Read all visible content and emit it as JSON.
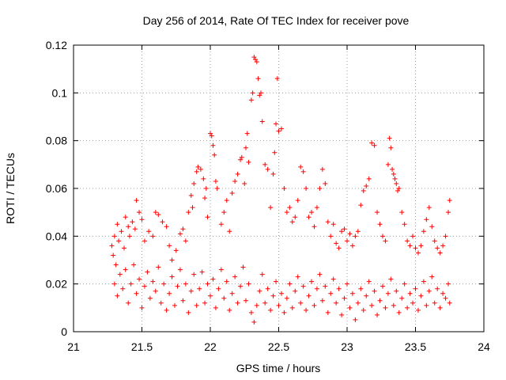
{
  "chart_data": {
    "type": "scatter",
    "title": "Day 256 of 2014, Rate Of TEC Index for receiver pove",
    "xlabel": "GPS time / hours",
    "ylabel": "ROTI / TECUs",
    "xlim": [
      21,
      24
    ],
    "ylim": [
      0,
      0.12
    ],
    "xticks": [
      21,
      21.5,
      22,
      22.5,
      23,
      23.5,
      24
    ],
    "xtick_labels": [
      "21",
      "21.5",
      "22",
      "22.5",
      "23",
      "23.5",
      "24"
    ],
    "yticks": [
      0,
      0.02,
      0.04,
      0.06,
      0.08,
      0.1,
      0.12
    ],
    "ytick_labels": [
      "0",
      "0.02",
      "0.04",
      "0.06",
      "0.08",
      "0.1",
      "0.12"
    ],
    "grid": true,
    "marker": "+",
    "marker_color": "#ff0000",
    "series": [
      {
        "name": "ROTI",
        "points": [
          [
            21.28,
            0.036
          ],
          [
            21.29,
            0.032
          ],
          [
            21.3,
            0.04
          ],
          [
            21.31,
            0.028
          ],
          [
            21.32,
            0.045
          ],
          [
            21.33,
            0.038
          ],
          [
            21.35,
            0.042
          ],
          [
            21.37,
            0.035
          ],
          [
            21.38,
            0.048
          ],
          [
            21.4,
            0.044
          ],
          [
            21.41,
            0.04
          ],
          [
            21.43,
            0.046
          ],
          [
            21.45,
            0.043
          ],
          [
            21.46,
            0.055
          ],
          [
            21.48,
            0.05
          ],
          [
            21.5,
            0.047
          ],
          [
            21.52,
            0.038
          ],
          [
            21.55,
            0.042
          ],
          [
            21.58,
            0.04
          ],
          [
            21.6,
            0.05
          ],
          [
            21.62,
            0.049
          ],
          [
            21.65,
            0.046
          ],
          [
            21.68,
            0.044
          ],
          [
            21.7,
            0.036
          ],
          [
            21.72,
            0.03
          ],
          [
            21.75,
            0.034
          ],
          [
            21.78,
            0.041
          ],
          [
            21.8,
            0.043
          ],
          [
            21.82,
            0.038
          ],
          [
            21.84,
            0.05
          ],
          [
            21.86,
            0.057
          ],
          [
            21.87,
            0.052
          ],
          [
            21.88,
            0.062
          ],
          [
            21.9,
            0.067
          ],
          [
            21.91,
            0.069
          ],
          [
            21.93,
            0.068
          ],
          [
            21.95,
            0.064
          ],
          [
            21.96,
            0.056
          ],
          [
            21.97,
            0.06
          ],
          [
            21.98,
            0.048
          ],
          [
            22.0,
            0.083
          ],
          [
            22.01,
            0.082
          ],
          [
            22.02,
            0.078
          ],
          [
            22.03,
            0.074
          ],
          [
            22.04,
            0.063
          ],
          [
            22.05,
            0.06
          ],
          [
            22.08,
            0.045
          ],
          [
            22.1,
            0.05
          ],
          [
            22.12,
            0.055
          ],
          [
            22.14,
            0.042
          ],
          [
            22.16,
            0.058
          ],
          [
            22.18,
            0.063
          ],
          [
            22.2,
            0.066
          ],
          [
            22.22,
            0.072
          ],
          [
            22.23,
            0.073
          ],
          [
            22.25,
            0.062
          ],
          [
            22.26,
            0.077
          ],
          [
            22.27,
            0.083
          ],
          [
            22.28,
            0.071
          ],
          [
            22.3,
            0.097
          ],
          [
            22.31,
            0.1
          ],
          [
            22.32,
            0.115
          ],
          [
            22.33,
            0.114
          ],
          [
            22.34,
            0.113
          ],
          [
            22.35,
            0.106
          ],
          [
            22.36,
            0.099
          ],
          [
            22.37,
            0.1
          ],
          [
            22.38,
            0.088
          ],
          [
            22.4,
            0.07
          ],
          [
            22.42,
            0.068
          ],
          [
            22.44,
            0.052
          ],
          [
            22.46,
            0.066
          ],
          [
            22.47,
            0.075
          ],
          [
            22.48,
            0.087
          ],
          [
            22.49,
            0.106
          ],
          [
            22.5,
            0.084
          ],
          [
            22.52,
            0.085
          ],
          [
            22.54,
            0.06
          ],
          [
            22.56,
            0.05
          ],
          [
            22.58,
            0.052
          ],
          [
            22.6,
            0.046
          ],
          [
            22.62,
            0.048
          ],
          [
            22.64,
            0.055
          ],
          [
            22.66,
            0.069
          ],
          [
            22.68,
            0.067
          ],
          [
            22.7,
            0.06
          ],
          [
            22.72,
            0.048
          ],
          [
            22.74,
            0.05
          ],
          [
            22.76,
            0.044
          ],
          [
            22.78,
            0.052
          ],
          [
            22.8,
            0.06
          ],
          [
            22.82,
            0.068
          ],
          [
            22.84,
            0.062
          ],
          [
            22.86,
            0.046
          ],
          [
            22.88,
            0.04
          ],
          [
            22.9,
            0.045
          ],
          [
            22.92,
            0.037
          ],
          [
            22.94,
            0.035
          ],
          [
            22.96,
            0.042
          ],
          [
            22.98,
            0.043
          ],
          [
            23.0,
            0.038
          ],
          [
            23.02,
            0.041
          ],
          [
            23.04,
            0.036
          ],
          [
            23.06,
            0.04
          ],
          [
            23.08,
            0.042
          ],
          [
            23.1,
            0.053
          ],
          [
            23.12,
            0.059
          ],
          [
            23.14,
            0.061
          ],
          [
            23.16,
            0.064
          ],
          [
            23.18,
            0.079
          ],
          [
            23.2,
            0.078
          ],
          [
            23.22,
            0.05
          ],
          [
            23.24,
            0.045
          ],
          [
            23.26,
            0.04
          ],
          [
            23.28,
            0.038
          ],
          [
            23.3,
            0.07
          ],
          [
            23.31,
            0.081
          ],
          [
            23.32,
            0.077
          ],
          [
            23.33,
            0.068
          ],
          [
            23.34,
            0.066
          ],
          [
            23.35,
            0.064
          ],
          [
            23.36,
            0.062
          ],
          [
            23.37,
            0.059
          ],
          [
            23.38,
            0.06
          ],
          [
            23.4,
            0.05
          ],
          [
            23.42,
            0.045
          ],
          [
            23.44,
            0.038
          ],
          [
            23.46,
            0.036
          ],
          [
            23.48,
            0.04
          ],
          [
            23.5,
            0.035
          ],
          [
            23.52,
            0.033
          ],
          [
            23.54,
            0.036
          ],
          [
            23.56,
            0.042
          ],
          [
            23.58,
            0.047
          ],
          [
            23.6,
            0.052
          ],
          [
            23.62,
            0.044
          ],
          [
            23.64,
            0.038
          ],
          [
            23.66,
            0.035
          ],
          [
            23.68,
            0.033
          ],
          [
            23.7,
            0.036
          ],
          [
            23.72,
            0.04
          ],
          [
            23.74,
            0.05
          ],
          [
            23.75,
            0.055
          ],
          [
            21.3,
            0.02
          ],
          [
            21.32,
            0.015
          ],
          [
            21.34,
            0.024
          ],
          [
            21.36,
            0.018
          ],
          [
            21.38,
            0.026
          ],
          [
            21.4,
            0.012
          ],
          [
            21.42,
            0.02
          ],
          [
            21.44,
            0.028
          ],
          [
            21.46,
            0.016
          ],
          [
            21.48,
            0.022
          ],
          [
            21.5,
            0.01
          ],
          [
            21.52,
            0.019
          ],
          [
            21.54,
            0.025
          ],
          [
            21.56,
            0.014
          ],
          [
            21.58,
            0.021
          ],
          [
            21.6,
            0.017
          ],
          [
            21.62,
            0.027
          ],
          [
            21.64,
            0.012
          ],
          [
            21.66,
            0.02
          ],
          [
            21.68,
            0.009
          ],
          [
            21.7,
            0.016
          ],
          [
            21.72,
            0.023
          ],
          [
            21.74,
            0.011
          ],
          [
            21.76,
            0.019
          ],
          [
            21.78,
            0.026
          ],
          [
            21.8,
            0.013
          ],
          [
            21.82,
            0.02
          ],
          [
            21.84,
            0.008
          ],
          [
            21.86,
            0.017
          ],
          [
            21.88,
            0.024
          ],
          [
            21.9,
            0.011
          ],
          [
            21.92,
            0.018
          ],
          [
            21.94,
            0.025
          ],
          [
            21.96,
            0.012
          ],
          [
            21.98,
            0.02
          ],
          [
            22.0,
            0.015
          ],
          [
            22.02,
            0.022
          ],
          [
            22.04,
            0.01
          ],
          [
            22.06,
            0.018
          ],
          [
            22.08,
            0.026
          ],
          [
            22.1,
            0.014
          ],
          [
            22.12,
            0.021
          ],
          [
            22.14,
            0.009
          ],
          [
            22.16,
            0.016
          ],
          [
            22.18,
            0.023
          ],
          [
            22.2,
            0.012
          ],
          [
            22.22,
            0.019
          ],
          [
            22.24,
            0.027
          ],
          [
            22.26,
            0.013
          ],
          [
            22.28,
            0.02
          ],
          [
            22.3,
            0.008
          ],
          [
            22.32,
            0.004
          ],
          [
            22.34,
            0.011
          ],
          [
            22.36,
            0.017
          ],
          [
            22.38,
            0.024
          ],
          [
            22.4,
            0.012
          ],
          [
            22.42,
            0.018
          ],
          [
            22.44,
            0.009
          ],
          [
            22.46,
            0.015
          ],
          [
            22.48,
            0.021
          ],
          [
            22.5,
            0.011
          ],
          [
            22.52,
            0.016
          ],
          [
            22.54,
            0.008
          ],
          [
            22.56,
            0.014
          ],
          [
            22.58,
            0.02
          ],
          [
            22.6,
            0.01
          ],
          [
            22.62,
            0.017
          ],
          [
            22.64,
            0.023
          ],
          [
            22.66,
            0.012
          ],
          [
            22.68,
            0.019
          ],
          [
            22.7,
            0.009
          ],
          [
            22.72,
            0.015
          ],
          [
            22.74,
            0.021
          ],
          [
            22.76,
            0.011
          ],
          [
            22.78,
            0.018
          ],
          [
            22.8,
            0.024
          ],
          [
            22.82,
            0.013
          ],
          [
            22.84,
            0.019
          ],
          [
            22.86,
            0.008
          ],
          [
            22.88,
            0.016
          ],
          [
            22.9,
            0.022
          ],
          [
            22.92,
            0.012
          ],
          [
            22.94,
            0.018
          ],
          [
            22.96,
            0.007
          ],
          [
            22.98,
            0.014
          ],
          [
            23.0,
            0.02
          ],
          [
            23.02,
            0.01
          ],
          [
            23.04,
            0.016
          ],
          [
            23.06,
            0.005
          ],
          [
            23.08,
            0.012
          ],
          [
            23.1,
            0.018
          ],
          [
            23.12,
            0.009
          ],
          [
            23.14,
            0.015
          ],
          [
            23.16,
            0.021
          ],
          [
            23.18,
            0.011
          ],
          [
            23.2,
            0.017
          ],
          [
            23.22,
            0.007
          ],
          [
            23.24,
            0.013
          ],
          [
            23.26,
            0.019
          ],
          [
            23.28,
            0.01
          ],
          [
            23.3,
            0.016
          ],
          [
            23.32,
            0.022
          ],
          [
            23.34,
            0.011
          ],
          [
            23.36,
            0.017
          ],
          [
            23.38,
            0.008
          ],
          [
            23.4,
            0.014
          ],
          [
            23.42,
            0.02
          ],
          [
            23.44,
            0.01
          ],
          [
            23.46,
            0.016
          ],
          [
            23.48,
            0.012
          ],
          [
            23.5,
            0.018
          ],
          [
            23.52,
            0.009
          ],
          [
            23.54,
            0.015
          ],
          [
            23.56,
            0.021
          ],
          [
            23.58,
            0.011
          ],
          [
            23.6,
            0.017
          ],
          [
            23.62,
            0.023
          ],
          [
            23.64,
            0.012
          ],
          [
            23.66,
            0.018
          ],
          [
            23.68,
            0.01
          ],
          [
            23.7,
            0.016
          ],
          [
            23.72,
            0.014
          ],
          [
            23.74,
            0.02
          ],
          [
            23.75,
            0.012
          ]
        ]
      }
    ]
  }
}
